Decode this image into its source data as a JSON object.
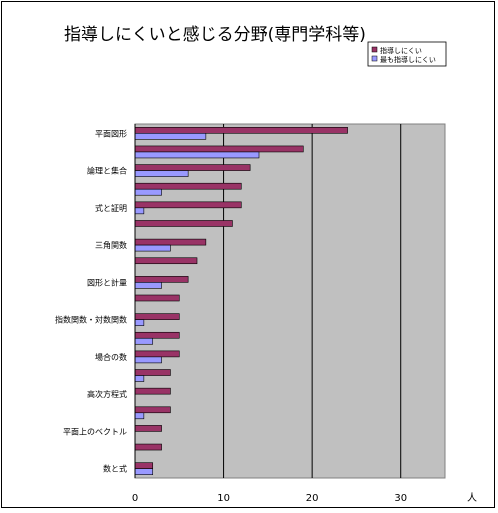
{
  "chart_data": {
    "type": "bar",
    "orientation": "horizontal",
    "title": "指導しにくいと感じる分野(専門学科等)",
    "xlabel": "人",
    "xlim": [
      0,
      35
    ],
    "xticks": [
      0,
      10,
      20,
      30
    ],
    "grid": true,
    "legend_position": "top-right",
    "plot_background": "#c0c0c0",
    "series": [
      {
        "name": "指導しにくい",
        "color": "#993366"
      },
      {
        "name": "最も指導しにくい",
        "color": "#9999ff"
      }
    ],
    "tick_labels": [
      "平面図形",
      "論理と集合",
      "式と証明",
      "三角関数",
      "図形と計量",
      "指数関数・対数関数",
      "場合の数",
      "高次方程式",
      "平面上のベクトル",
      "数と式"
    ],
    "bars": [
      [
        24,
        8
      ],
      [
        19,
        14
      ],
      [
        13,
        6
      ],
      [
        12,
        3
      ],
      [
        12,
        1
      ],
      [
        11,
        0
      ],
      [
        8,
        4
      ],
      [
        7,
        0
      ],
      [
        6,
        3
      ],
      [
        5,
        0
      ],
      [
        5,
        1
      ],
      [
        5,
        2
      ],
      [
        5,
        3
      ],
      [
        4,
        1
      ],
      [
        4,
        0
      ],
      [
        4,
        1
      ],
      [
        3,
        0
      ],
      [
        3,
        0
      ],
      [
        2,
        2
      ]
    ]
  }
}
